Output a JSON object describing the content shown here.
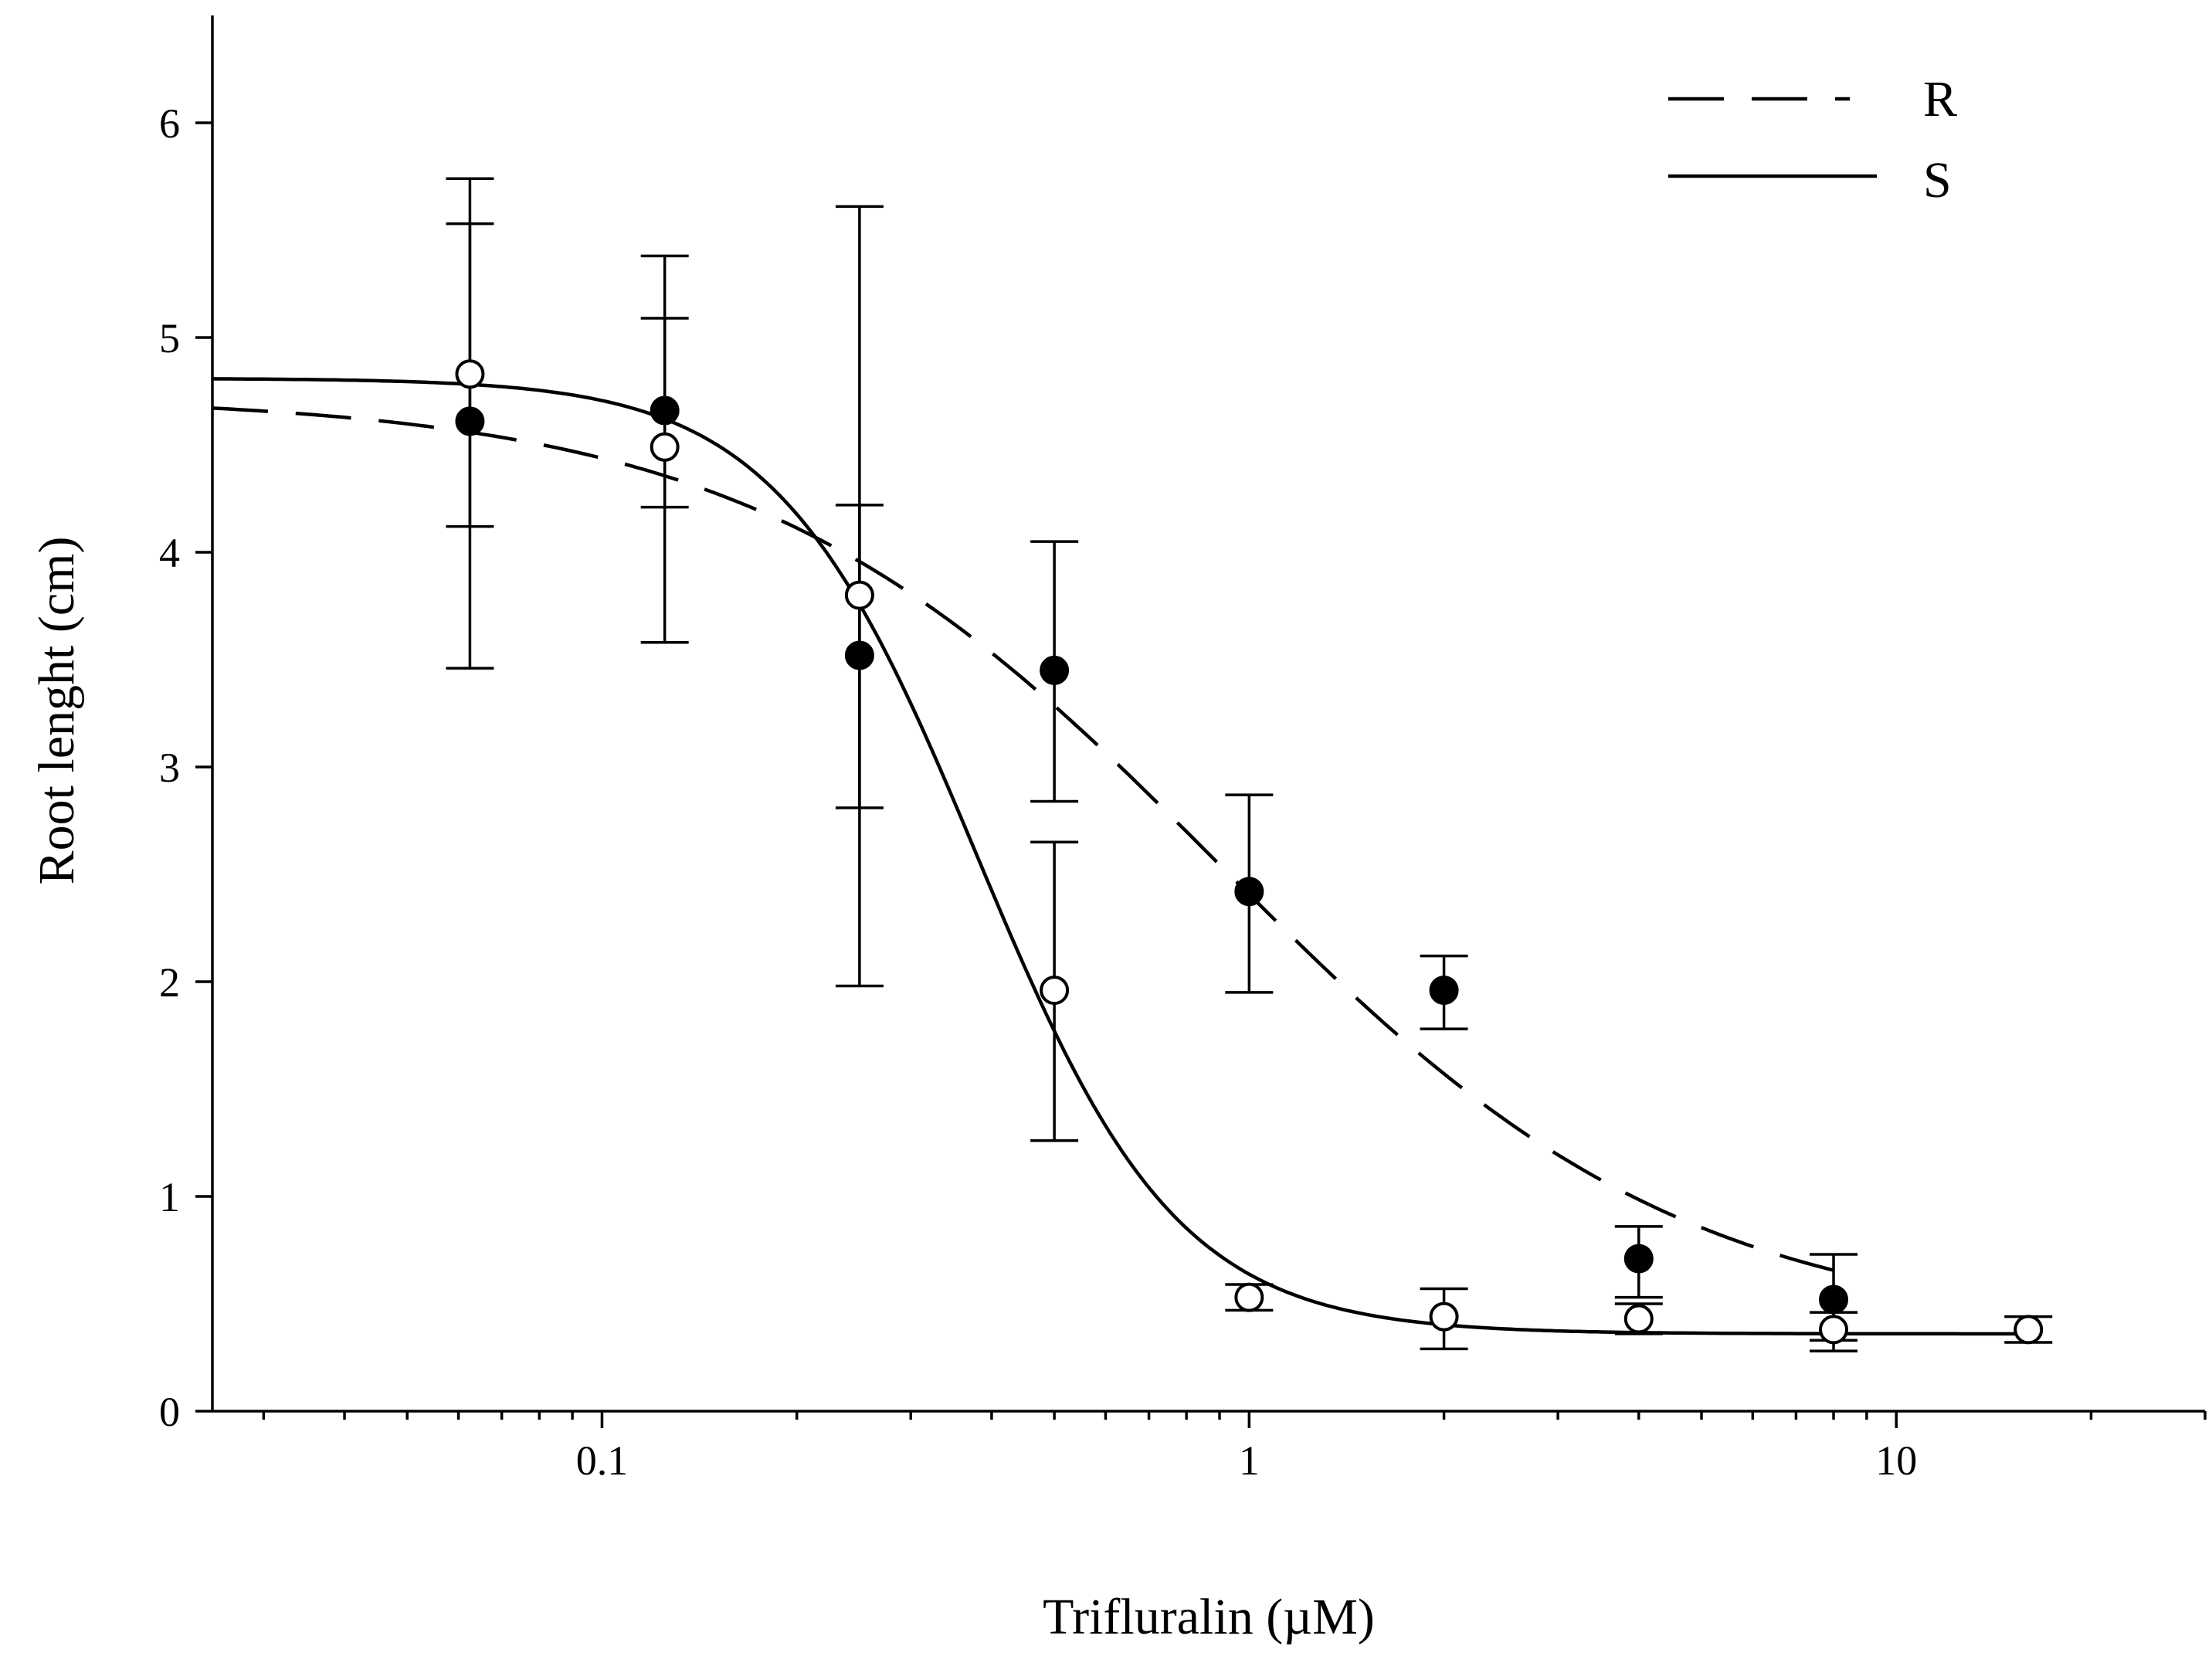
{
  "chart_data": {
    "type": "scatter",
    "title": "",
    "xlabel": "Trifluralin (µM)",
    "ylabel": "Root lenght (cm)",
    "xscale": "log",
    "xlim": [
      0.025,
      30
    ],
    "ylim": [
      0,
      6.5
    ],
    "x_ticks": [
      {
        "value": 0.1,
        "label": "0.1"
      },
      {
        "value": 1,
        "label": "1"
      },
      {
        "value": 10,
        "label": "10"
      }
    ],
    "x_minor_ticks": [
      0.03,
      0.04,
      0.05,
      0.06,
      0.07,
      0.08,
      0.09,
      0.2,
      0.3,
      0.4,
      0.5,
      0.6,
      0.7,
      0.8,
      0.9,
      2,
      3,
      4,
      5,
      6,
      7,
      8,
      9,
      20,
      30
    ],
    "y_ticks": [
      {
        "value": 0,
        "label": "0"
      },
      {
        "value": 1,
        "label": "1"
      },
      {
        "value": 2,
        "label": "2"
      },
      {
        "value": 3,
        "label": "3"
      },
      {
        "value": 4,
        "label": "4"
      },
      {
        "value": 5,
        "label": "5"
      },
      {
        "value": 6,
        "label": "6"
      }
    ],
    "grid": false,
    "legend_position": "top-right",
    "series": [
      {
        "name": "R",
        "line_style": "dashed",
        "marker": "filled-circle",
        "points": [
          {
            "x": 0.0625,
            "y": 4.61,
            "err_low": 3.46,
            "err_high": 5.74
          },
          {
            "x": 0.125,
            "y": 4.66,
            "err_low": 4.21,
            "err_high": 5.09
          },
          {
            "x": 0.25,
            "y": 3.52,
            "err_low": 2.81,
            "err_high": 4.22
          },
          {
            "x": 0.5,
            "y": 3.45,
            "err_low": 2.84,
            "err_high": 4.05
          },
          {
            "x": 1,
            "y": 2.42,
            "err_low": 1.95,
            "err_high": 2.87
          },
          {
            "x": 2,
            "y": 1.96,
            "err_low": 1.78,
            "err_high": 2.12
          },
          {
            "x": 4,
            "y": 0.71,
            "err_low": 0.53,
            "err_high": 0.86
          },
          {
            "x": 8,
            "y": 0.52,
            "err_low": 0.33,
            "err_high": 0.73
          }
        ],
        "fit": {
          "model": "log-logistic",
          "top": 4.73,
          "bottom": 0.36,
          "ec50": 0.9,
          "slope": 1.2
        }
      },
      {
        "name": "S",
        "line_style": "solid",
        "marker": "open-circle",
        "points": [
          {
            "x": 0.0625,
            "y": 4.83,
            "err_low": 4.12,
            "err_high": 5.53
          },
          {
            "x": 0.125,
            "y": 4.49,
            "err_low": 3.58,
            "err_high": 5.38
          },
          {
            "x": 0.25,
            "y": 3.8,
            "err_low": 1.98,
            "err_high": 5.61
          },
          {
            "x": 0.5,
            "y": 1.96,
            "err_low": 1.26,
            "err_high": 2.65
          },
          {
            "x": 1,
            "y": 0.53,
            "err_low": 0.47,
            "err_high": 0.59
          },
          {
            "x": 2,
            "y": 0.44,
            "err_low": 0.29,
            "err_high": 0.57
          },
          {
            "x": 4,
            "y": 0.43,
            "err_low": 0.36,
            "err_high": 0.5
          },
          {
            "x": 8,
            "y": 0.38,
            "err_low": 0.28,
            "err_high": 0.46
          },
          {
            "x": 16,
            "y": 0.38,
            "err_low": 0.32,
            "err_high": 0.44
          }
        ],
        "fit": {
          "model": "log-logistic",
          "top": 4.81,
          "bottom": 0.36,
          "ec50": 0.38,
          "slope": 2.8
        }
      }
    ]
  }
}
